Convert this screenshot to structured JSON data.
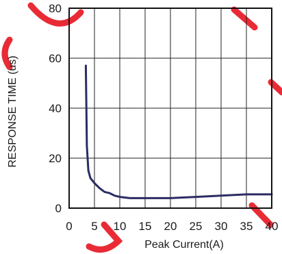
{
  "chart_data": {
    "type": "line",
    "title": "",
    "xlabel": "Peak Current(A)",
    "ylabel": "RESPONSE TIME (us)",
    "xlim": [
      0,
      40
    ],
    "ylim": [
      0,
      80
    ],
    "x_ticks": [
      "0",
      "5",
      "10",
      "15",
      "20",
      "25",
      "30",
      "35",
      "40"
    ],
    "y_ticks": [
      "0",
      "20",
      "40",
      "60",
      "80"
    ],
    "grid": true,
    "series": [
      {
        "color": "#2b2b64",
        "x": [
          3.3,
          3.5,
          3.8,
          4.2,
          5,
          6,
          7,
          8,
          9,
          10,
          12,
          15,
          20,
          25,
          30,
          35,
          40
        ],
        "y": [
          57,
          25,
          15,
          12,
          10,
          8,
          6.5,
          6,
          5,
          4.5,
          4,
          4,
          4,
          4.5,
          5,
          5.5,
          5.5
        ]
      }
    ],
    "watermark_color": "#e8202a"
  }
}
